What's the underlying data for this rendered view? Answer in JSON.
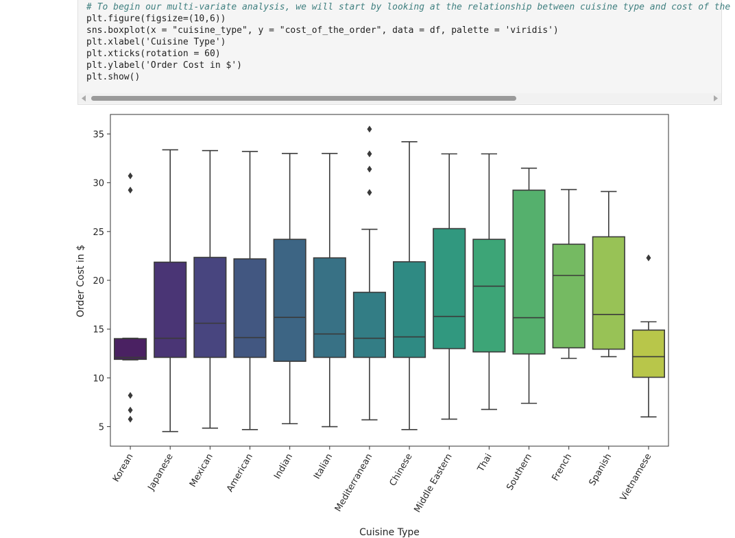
{
  "code": {
    "lines": [
      "# To begin our multi-variate analysis, we will start by looking at the relationship between cuisine type and cost of the ord",
      "plt.figure(figsize=(10,6))",
      "sns.boxplot(x = \"cuisine_type\", y = \"cost_of_the_order\", data = df, palette = 'viridis')",
      "plt.xlabel('Cuisine Type')",
      "plt.xticks(rotation = 60)",
      "plt.ylabel('Order Cost in $')",
      "plt.show()"
    ]
  },
  "chart_data": {
    "type": "box",
    "xlabel": "Cuisine Type",
    "ylabel": "Order Cost in $",
    "categories": [
      "Korean",
      "Japanese",
      "Mexican",
      "American",
      "Indian",
      "Italian",
      "Mediterranean",
      "Chinese",
      "Middle Eastern",
      "Thai",
      "Southern",
      "French",
      "Spanish",
      "Vietnamese"
    ],
    "colors": [
      "#4a2162",
      "#4a3575",
      "#48457f",
      "#425781",
      "#3d6584",
      "#387185",
      "#337d85",
      "#2f8a83",
      "#31987f",
      "#3da577",
      "#55b06d",
      "#75ba62",
      "#98c256",
      "#b8c64a"
    ],
    "boxes": [
      {
        "whislo": 11.85,
        "q1": 11.9,
        "med": 12.1,
        "q3": 14.02,
        "whishi": 14.06,
        "fliers": [
          30.7,
          29.25,
          8.2,
          6.7,
          5.77
        ]
      },
      {
        "whislo": 4.5,
        "q1": 12.1,
        "med": 14.06,
        "q3": 21.86,
        "whishi": 33.38,
        "fliers": []
      },
      {
        "whislo": 4.85,
        "q1": 12.1,
        "med": 15.6,
        "q3": 22.35,
        "whishi": 33.3,
        "fliers": []
      },
      {
        "whislo": 4.7,
        "q1": 12.1,
        "med": 14.13,
        "q3": 22.2,
        "whishi": 33.2,
        "fliers": []
      },
      {
        "whislo": 5.3,
        "q1": 11.7,
        "med": 16.2,
        "q3": 24.2,
        "whishi": 33.0,
        "fliers": []
      },
      {
        "whislo": 5.0,
        "q1": 12.1,
        "med": 14.5,
        "q3": 22.3,
        "whishi": 33.0,
        "fliers": []
      },
      {
        "whislo": 5.7,
        "q1": 12.1,
        "med": 14.06,
        "q3": 18.77,
        "whishi": 25.23,
        "fliers": [
          35.5,
          32.96,
          31.4,
          29.0
        ]
      },
      {
        "whislo": 4.7,
        "q1": 12.1,
        "med": 14.2,
        "q3": 21.9,
        "whishi": 34.2,
        "fliers": []
      },
      {
        "whislo": 5.77,
        "q1": 13.0,
        "med": 16.3,
        "q3": 25.3,
        "whishi": 32.96,
        "fliers": []
      },
      {
        "whislo": 6.76,
        "q1": 12.66,
        "med": 19.4,
        "q3": 24.2,
        "whishi": 32.96,
        "fliers": []
      },
      {
        "whislo": 7.39,
        "q1": 12.45,
        "med": 16.17,
        "q3": 29.24,
        "whishi": 31.49,
        "fliers": []
      },
      {
        "whislo": 12.0,
        "q1": 13.08,
        "med": 20.5,
        "q3": 23.7,
        "whishi": 29.3,
        "fliers": []
      },
      {
        "whislo": 12.17,
        "q1": 12.94,
        "med": 16.5,
        "q3": 24.46,
        "whishi": 29.1,
        "fliers": []
      },
      {
        "whislo": 6.0,
        "q1": 10.06,
        "med": 12.17,
        "q3": 14.9,
        "whishi": 15.75,
        "fliers": [
          22.3
        ]
      }
    ],
    "ylim": [
      3,
      37
    ],
    "yticks": [
      5,
      10,
      15,
      20,
      25,
      30,
      35
    ]
  }
}
